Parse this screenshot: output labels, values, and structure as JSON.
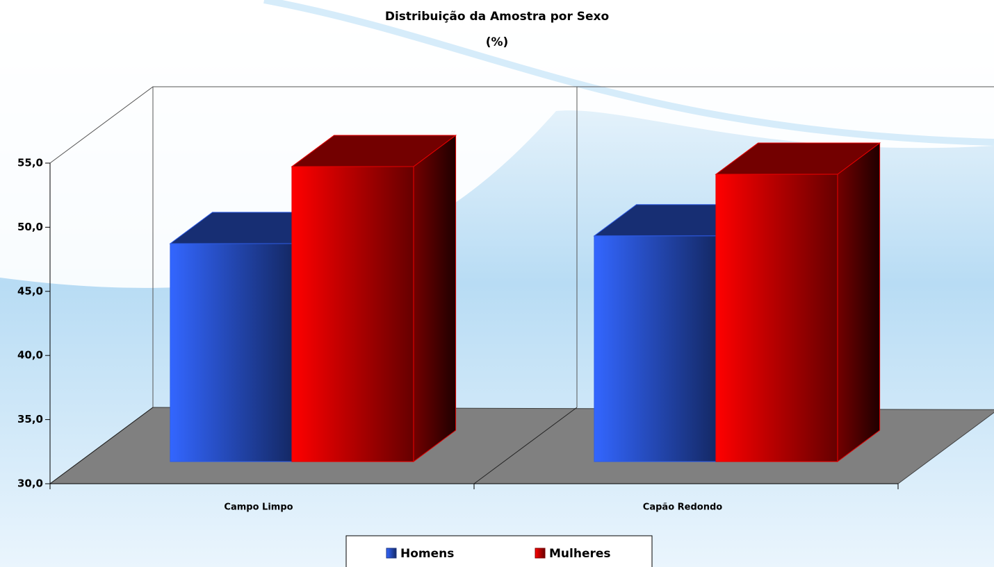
{
  "chart_data": {
    "type": "bar3d",
    "title": "Distribuição da Amostra por Sexo",
    "subtitle": "(%)",
    "categories": [
      "Campo Limpo",
      "Capão Redondo"
    ],
    "series": [
      {
        "name": "Homens",
        "color": "#3366ff",
        "values": [
          47.0,
          47.6
        ],
        "value_labels": [
          "47,0",
          "47,6"
        ]
      },
      {
        "name": "Mulheres",
        "color": "#ff0000",
        "values": [
          53.0,
          52.4
        ],
        "value_labels": [
          "53,0",
          "52,4"
        ]
      }
    ],
    "ylim": [
      30,
      55
    ],
    "yticks": [
      {
        "value": 30,
        "label": "30,0"
      },
      {
        "value": 35,
        "label": "35,0"
      },
      {
        "value": 40,
        "label": "40,0"
      },
      {
        "value": 45,
        "label": "45,0"
      },
      {
        "value": 50,
        "label": "50,0"
      },
      {
        "value": 55,
        "label": "55,0"
      }
    ],
    "legend": "bottom"
  }
}
